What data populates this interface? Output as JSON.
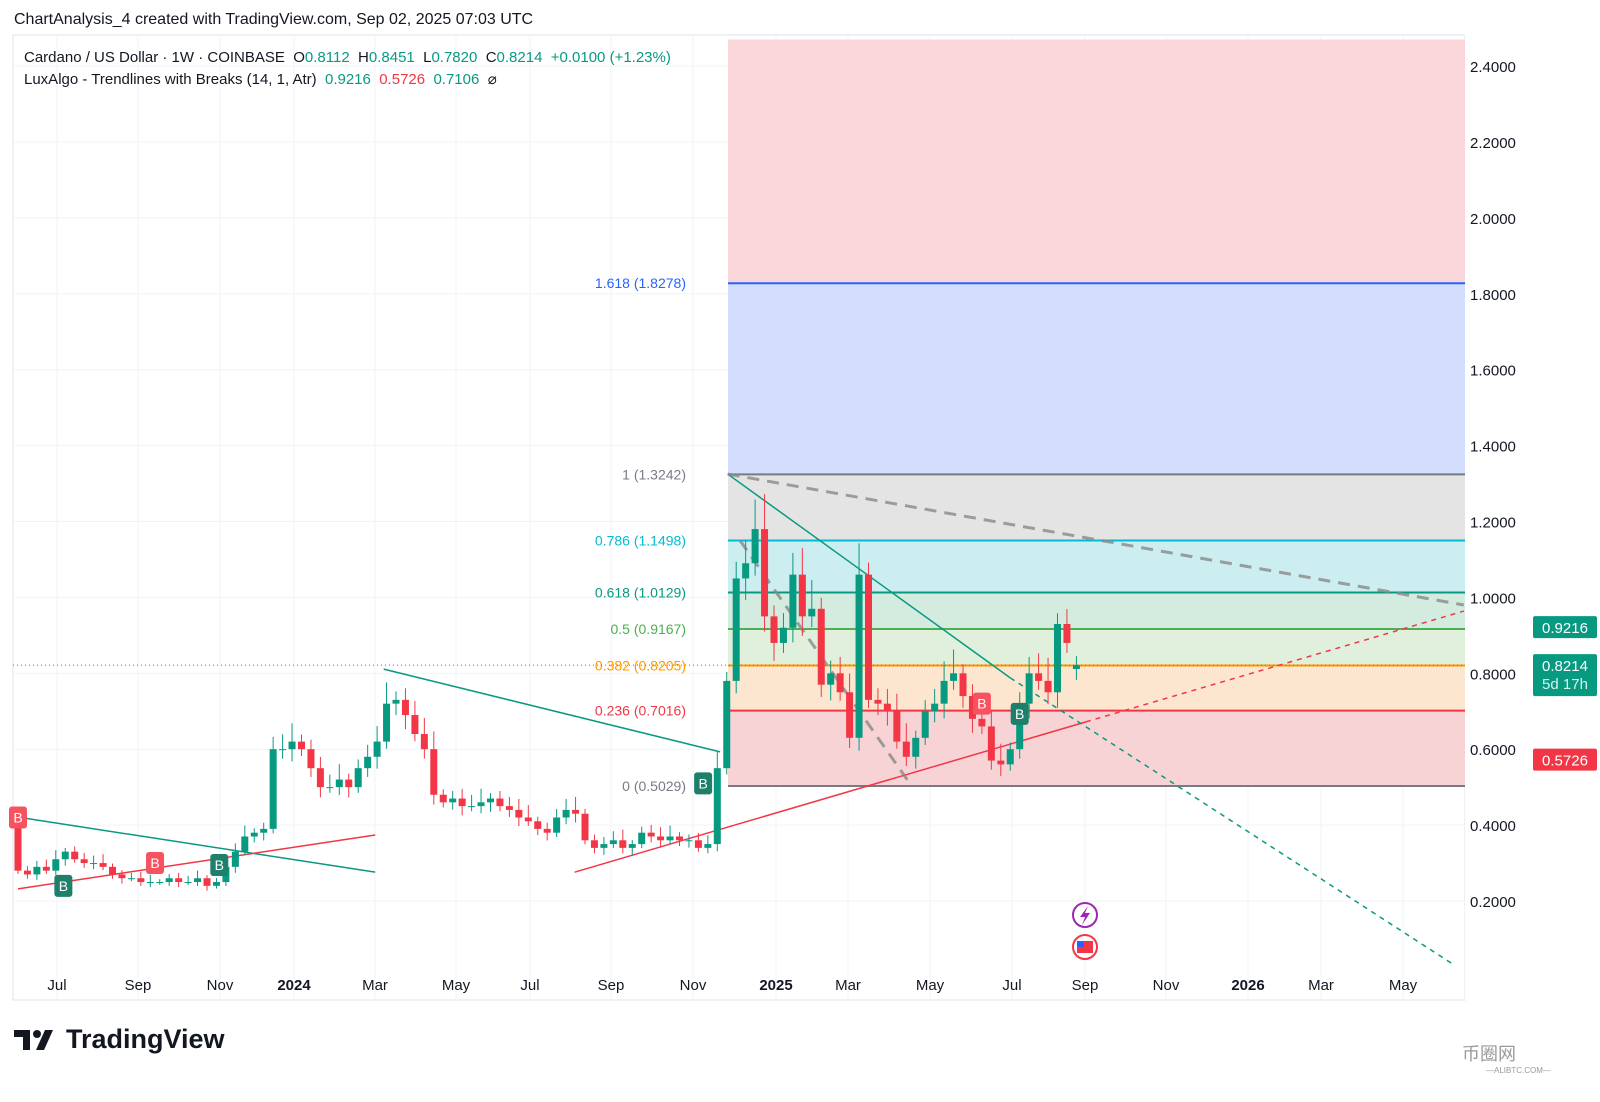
{
  "header": {
    "title": "ChartAnalysis_4 created with TradingView.com, Sep 02, 2025 07:03 UTC"
  },
  "legend": {
    "symbol": "Cardano / US Dollar · 1W · COINBASE",
    "o_label": "O",
    "o": "0.8112",
    "h_label": "H",
    "h": "0.8451",
    "l_label": "L",
    "l": "0.7820",
    "c_label": "C",
    "c": "0.8214",
    "change": "+0.0100 (+1.23%)",
    "indicator": "LuxAlgo - Trendlines with Breaks (14, 1, Atr)",
    "ind_v1": "0.9216",
    "ind_v2": "0.5726",
    "ind_v3": "0.7106",
    "hide_icon": "⌀"
  },
  "colors": {
    "up": "#089981",
    "down": "#f23645",
    "fib_blue": "#2962ff"
  },
  "chart_data": {
    "type": "candlestick",
    "interval": "1W",
    "first_open": 0.4,
    "closes": [
      0.28,
      0.27,
      0.29,
      0.28,
      0.31,
      0.33,
      0.31,
      0.3,
      0.3,
      0.29,
      0.27,
      0.26,
      0.26,
      0.25,
      0.25,
      0.25,
      0.26,
      0.25,
      0.25,
      0.26,
      0.24,
      0.25,
      0.29,
      0.33,
      0.37,
      0.38,
      0.39,
      0.6,
      0.6,
      0.62,
      0.6,
      0.55,
      0.5,
      0.5,
      0.52,
      0.5,
      0.55,
      0.58,
      0.62,
      0.72,
      0.73,
      0.69,
      0.64,
      0.6,
      0.48,
      0.46,
      0.47,
      0.45,
      0.45,
      0.46,
      0.47,
      0.45,
      0.44,
      0.42,
      0.41,
      0.39,
      0.38,
      0.42,
      0.44,
      0.43,
      0.36,
      0.34,
      0.35,
      0.36,
      0.34,
      0.35,
      0.38,
      0.37,
      0.36,
      0.37,
      0.36,
      0.36,
      0.34,
      0.35,
      0.55,
      0.78,
      1.05,
      1.09,
      1.18,
      0.95,
      0.88,
      0.92,
      1.06,
      0.95,
      0.97,
      0.77,
      0.8,
      0.75,
      0.63,
      1.06,
      0.73,
      0.72,
      0.7,
      0.62,
      0.58,
      0.63,
      0.7,
      0.72,
      0.78,
      0.8,
      0.74,
      0.68,
      0.66,
      0.57,
      0.56,
      0.6,
      0.72,
      0.8,
      0.78,
      0.75,
      0.93,
      0.88,
      0.8112
    ],
    "last_bar": {
      "o": 0.8112,
      "h": 0.8451,
      "l": 0.782,
      "c": 0.8214
    },
    "y_ticks": [
      "2.4000",
      "2.2000",
      "2.0000",
      "1.8000",
      "1.6000",
      "1.4000",
      "1.2000",
      "1.0000",
      "0.8000",
      "0.6000",
      "0.4000",
      "0.2000"
    ],
    "y_range": [
      0.05,
      2.47
    ],
    "x_ticks": [
      "Jul",
      "Sep",
      "Nov",
      "2024",
      "Mar",
      "May",
      "Jul",
      "Sep",
      "Nov",
      "2025",
      "Mar",
      "May",
      "Jul",
      "Sep",
      "Nov",
      "2026",
      "Mar",
      "May"
    ],
    "fib_levels": [
      {
        "ratio": "0",
        "price": 0.5029,
        "label": "0 (0.5029)",
        "color": "#787b86",
        "fill": "#f8d3d6"
      },
      {
        "ratio": "0.236",
        "price": 0.7016,
        "label": "0.236 (0.7016)",
        "color": "#f23645",
        "fill": "#fde6cf"
      },
      {
        "ratio": "0.382",
        "price": 0.8205,
        "label": "0.382 (0.8205)",
        "color": "#ff9800",
        "fill": "#e0f0dc"
      },
      {
        "ratio": "0.5",
        "price": 0.9167,
        "label": "0.5 (0.9167)",
        "color": "#4caf50",
        "fill": "#d4ece0"
      },
      {
        "ratio": "0.618",
        "price": 1.0129,
        "label": "0.618 (1.0129)",
        "color": "#089981",
        "fill": "#cdeef0"
      },
      {
        "ratio": "0.786",
        "price": 1.1498,
        "label": "0.786 (1.1498)",
        "color": "#00bcd4",
        "fill": "#e4e4e4"
      },
      {
        "ratio": "1",
        "price": 1.3242,
        "label": "1 (1.3242)",
        "color": "#787b86",
        "fill": "#d3defd"
      },
      {
        "ratio": "1.618",
        "price": 1.8278,
        "label": "1.618 (1.8278)",
        "color": "#2962ff",
        "fill": "#f9d6d9"
      }
    ],
    "trendlines": [
      {
        "name": "down-trendline-1",
        "from": [
          0,
          0.421
        ],
        "to": [
          37.8,
          0.276
        ],
        "color": "#089981"
      },
      {
        "name": "up-trendline-1",
        "from": [
          0,
          0.232
        ],
        "to": [
          37.8,
          0.374
        ],
        "color": "#f23645"
      },
      {
        "name": "down-trendline-2",
        "from": [
          38.7,
          0.811
        ],
        "to": [
          74.3,
          0.593
        ],
        "color": "#089981"
      },
      {
        "name": "up-trendline-2",
        "from": [
          58.9,
          0.276
        ],
        "to": [
          113,
          0.672
        ],
        "color": "#f23645"
      },
      {
        "name": "up-trendline-2-projection",
        "from": [
          113,
          0.672
        ],
        "to": [
          153,
          0.964
        ],
        "color": "#f23645",
        "dashed": true
      },
      {
        "name": "down-trendline-3",
        "from": [
          75.1,
          1.325
        ],
        "to": [
          105,
          0.788
        ],
        "color": "#089981"
      },
      {
        "name": "down-trendline-3-projection",
        "from": [
          105,
          0.788
        ],
        "to": [
          152,
          0.031
        ],
        "color": "#089981",
        "dashed": true
      },
      {
        "name": "grey-dashed-resistance",
        "from": [
          75.1,
          1.325
        ],
        "to": [
          153,
          0.98
        ],
        "color": "#888888",
        "dashed": true,
        "thick": true
      },
      {
        "name": "grey-dashed-path",
        "from": [
          76.4,
          1.15
        ],
        "to": [
          94.2,
          0.516
        ],
        "color": "#888888",
        "dashed": true,
        "thick": true
      }
    ],
    "break_labels": [
      {
        "text": "B",
        "type": "down",
        "week": 0,
        "price": 0.42
      },
      {
        "text": "B",
        "type": "up",
        "week": 4.8,
        "price": 0.24
      },
      {
        "text": "B",
        "type": "down",
        "week": 14.5,
        "price": 0.3
      },
      {
        "text": "B",
        "type": "up",
        "week": 21.3,
        "price": 0.295
      },
      {
        "text": "B",
        "type": "up",
        "week": 72.5,
        "price": 0.51
      },
      {
        "text": "B",
        "type": "down",
        "week": 102,
        "price": 0.72
      },
      {
        "text": "B",
        "type": "up",
        "week": 106,
        "price": 0.693
      }
    ],
    "current_price_line": 0.8214
  },
  "price_badges": {
    "indicator_value": "0.9216",
    "last_price": "0.8214",
    "countdown": "5d 17h",
    "lower_value": "0.5726"
  },
  "footer": {
    "brand": "TradingView",
    "watermark": "币圈网",
    "watermark_sub": "—ALIBTC.COM—"
  }
}
